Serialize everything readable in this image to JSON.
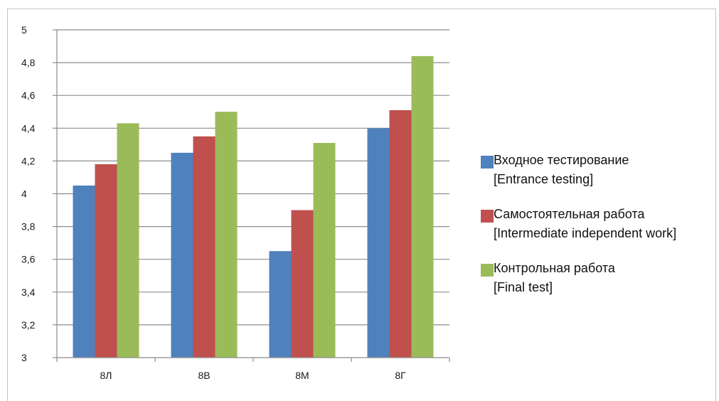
{
  "chart_data": {
    "type": "bar",
    "categories": [
      "8Л",
      "8В",
      "8М",
      "8Г"
    ],
    "series": [
      {
        "name": "Входное тестирование",
        "name_en": "[Entrance testing]",
        "color": "#4f81bd",
        "values": [
          4.05,
          4.25,
          3.65,
          4.4
        ]
      },
      {
        "name": "Самостоятельная работа",
        "name_en": "[Intermediate independent work]",
        "color": "#c0504d",
        "values": [
          4.18,
          4.35,
          3.9,
          4.51
        ]
      },
      {
        "name": "Контрольная работа",
        "name_en": "[Final test]",
        "color": "#9bbb59",
        "values": [
          4.43,
          4.5,
          4.31,
          4.84
        ]
      }
    ],
    "ylim": [
      3,
      5
    ],
    "yticks": [
      "3",
      "3,2",
      "3,4",
      "3,6",
      "3,8",
      "4",
      "4,2",
      "4,4",
      "4,6",
      "4,8",
      "5"
    ],
    "grid": true,
    "legend_position": "right",
    "title": "",
    "xlabel": "",
    "ylabel": ""
  }
}
